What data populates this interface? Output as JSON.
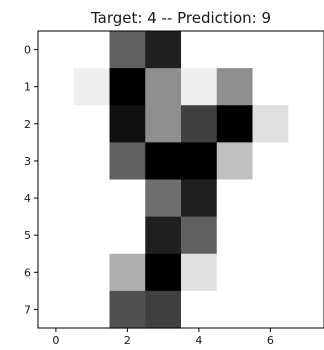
{
  "chart_data": {
    "type": "heatmap",
    "title": "Target: 4 -- Prediction: 9",
    "colormap": "gray_r",
    "x_ticks": [
      0,
      2,
      4,
      6
    ],
    "y_ticks": [
      0,
      1,
      2,
      3,
      4,
      5,
      6,
      7
    ],
    "x_range": [
      -0.5,
      7.5
    ],
    "y_range": [
      -0.5,
      7.5
    ],
    "vmin": 0,
    "vmax": 16,
    "matrix": [
      [
        0,
        0,
        10,
        14,
        0,
        0,
        0,
        0
      ],
      [
        0,
        1,
        16,
        7,
        1,
        7,
        0,
        0
      ],
      [
        0,
        0,
        15,
        7,
        12,
        16,
        2,
        0
      ],
      [
        0,
        0,
        10,
        16,
        16,
        4,
        0,
        0
      ],
      [
        0,
        0,
        0,
        9,
        14,
        0,
        0,
        0
      ],
      [
        0,
        0,
        0,
        14,
        10,
        0,
        0,
        0
      ],
      [
        0,
        0,
        5,
        16,
        2,
        0,
        0,
        0
      ],
      [
        0,
        0,
        11,
        12,
        0,
        0,
        0,
        0
      ]
    ]
  }
}
